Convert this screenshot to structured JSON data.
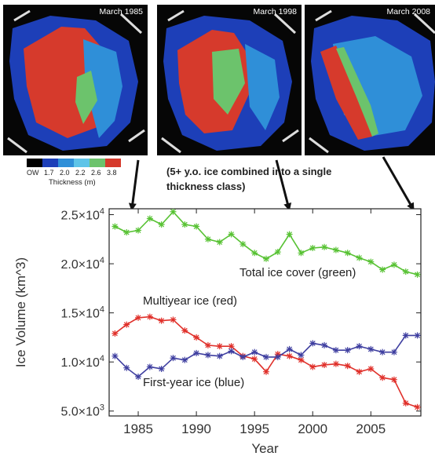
{
  "maps": [
    {
      "label": "March 1985",
      "style": "multiyear"
    },
    {
      "label": "March 1998",
      "style": "mixed"
    },
    {
      "label": "March 2008",
      "style": "thin"
    }
  ],
  "legend": {
    "ticks": [
      "OW",
      "1.7",
      "2.0",
      "2.2",
      "2.6",
      "3.8"
    ],
    "colors": [
      "#000000",
      "#1d3fb8",
      "#2f8fd8",
      "#5ec4e8",
      "#6cc36c",
      "#d63a2c"
    ],
    "title": "Thickness (m)"
  },
  "note": {
    "line1": "(5+ y.o. ice combined into a single",
    "line2": "thickness class)"
  },
  "chart_data": {
    "type": "line",
    "xlabel": "Year",
    "ylabel": "Ice Volume  (km^3)",
    "xlim": [
      1982.5,
      2009.3
    ],
    "ylim": [
      4500,
      25600
    ],
    "x_ticks": [
      1985,
      1990,
      1995,
      2000,
      2005
    ],
    "x_tick_labels": [
      "1985",
      "1990",
      "1995",
      "2000",
      "2005"
    ],
    "y_ticks": [
      5000,
      10000,
      15000,
      20000,
      25000
    ],
    "y_tick_labels": [
      {
        "mant": "5.0×10",
        "exp": "3"
      },
      {
        "mant": "1.0×10",
        "exp": "4"
      },
      {
        "mant": "1.5×10",
        "exp": "4"
      },
      {
        "mant": "2.0×10",
        "exp": "4"
      },
      {
        "mant": "2.5×10",
        "exp": "4"
      }
    ],
    "x": [
      1983,
      1984,
      1985,
      1986,
      1987,
      1988,
      1989,
      1990,
      1991,
      1992,
      1993,
      1994,
      1995,
      1996,
      1997,
      1998,
      1999,
      2000,
      2001,
      2002,
      2003,
      2004,
      2005,
      2006,
      2007,
      2008,
      2009
    ],
    "series": [
      {
        "name": "Total ice cover (green)",
        "color": "#58c234",
        "values": [
          23800,
          23200,
          23400,
          24600,
          24000,
          25300,
          24000,
          23800,
          22500,
          22200,
          23000,
          22000,
          21100,
          20500,
          21200,
          23000,
          21100,
          21600,
          21700,
          21400,
          21100,
          20600,
          20200,
          19400,
          19900,
          19200,
          18900
        ]
      },
      {
        "name": "Multiyear ice (red)",
        "color": "#e0302a",
        "values": [
          12900,
          13800,
          14500,
          14600,
          14200,
          14300,
          13200,
          12500,
          11700,
          11600,
          11600,
          10600,
          10300,
          9000,
          10800,
          10600,
          10200,
          9500,
          9700,
          9800,
          9600,
          9000,
          9300,
          8400,
          8200,
          5800,
          5400
        ]
      },
      {
        "name": "First-year ice (blue)",
        "color": "#3f3fa0",
        "values": [
          10600,
          9400,
          8500,
          9500,
          9300,
          10400,
          10200,
          10900,
          10700,
          10600,
          11100,
          10500,
          11000,
          10500,
          10500,
          11300,
          10700,
          11900,
          11700,
          11200,
          11200,
          11600,
          11300,
          11000,
          11000,
          12700,
          12700
        ]
      }
    ],
    "annotations": [
      "Total ice cover (green)",
      "Multiyear ice (red)",
      "First-year ice (blue)"
    ]
  }
}
